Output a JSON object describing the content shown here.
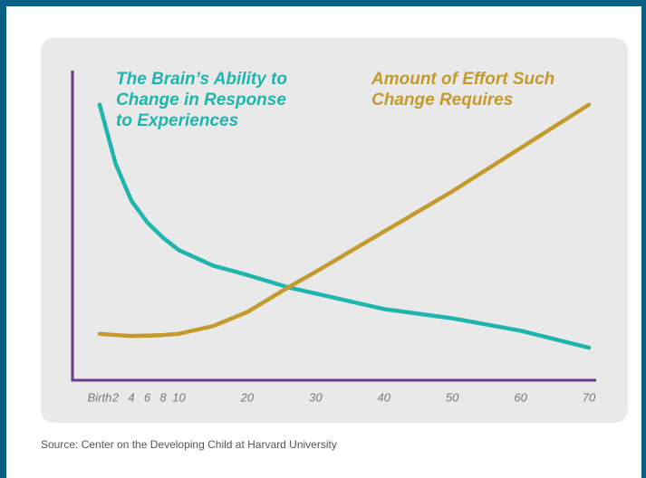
{
  "chart_data": {
    "type": "line",
    "x": [
      0,
      2,
      4,
      6,
      8,
      10,
      15,
      20,
      26,
      30,
      40,
      50,
      60,
      70
    ],
    "series": [
      {
        "name": "The Brain’s Ability to\nChange in Response\nto Experiences",
        "color": "#1fb5ad",
        "values": [
          89,
          70,
          58,
          51,
          46,
          42,
          37,
          34,
          30,
          28,
          23,
          20,
          16,
          10.5
        ]
      },
      {
        "name": "Amount of Effort Such\nChange Requires",
        "color": "#c49a2c",
        "values": [
          15,
          14.6,
          14.3,
          14.4,
          14.6,
          15,
          17.5,
          22,
          30,
          35,
          48,
          61,
          75,
          89
        ]
      }
    ],
    "xlim": [
      0,
      70
    ],
    "xticks": [
      {
        "value": 0,
        "label": "Birth"
      },
      2,
      4,
      6,
      8,
      10,
      20,
      30,
      40,
      50,
      60,
      70
    ],
    "ylim": [
      0,
      100
    ],
    "source": "Source: Center on the Developing Child at Harvard University"
  }
}
